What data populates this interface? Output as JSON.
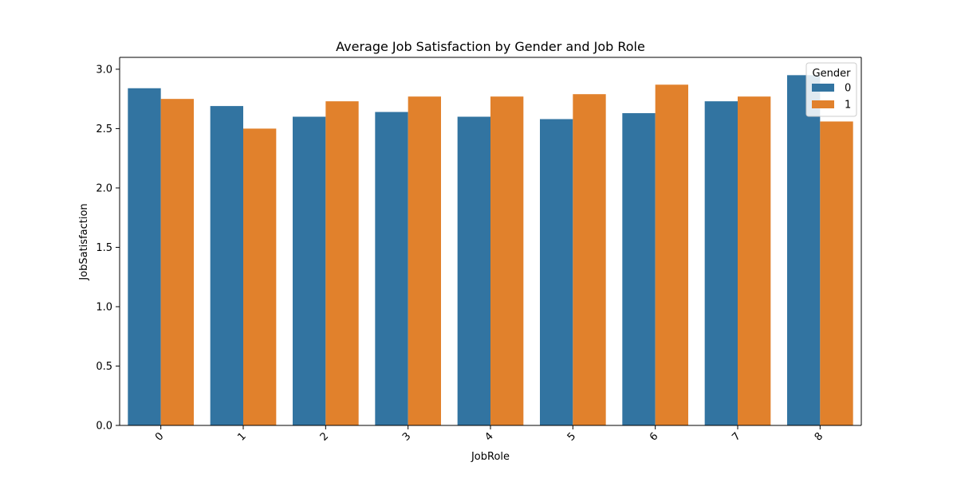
{
  "chart_data": {
    "type": "bar",
    "title": "Average Job Satisfaction by Gender and Job Role",
    "xlabel": "JobRole",
    "ylabel": "JobSatisfaction",
    "categories": [
      "0",
      "1",
      "2",
      "3",
      "4",
      "5",
      "6",
      "7",
      "8"
    ],
    "series": [
      {
        "name": "0",
        "color": "#3274a1",
        "values": [
          2.84,
          2.69,
          2.6,
          2.64,
          2.6,
          2.58,
          2.63,
          2.73,
          2.95
        ]
      },
      {
        "name": "1",
        "color": "#e1812c",
        "values": [
          2.75,
          2.5,
          2.73,
          2.77,
          2.77,
          2.79,
          2.87,
          2.77,
          2.56
        ]
      }
    ],
    "ylim": [
      0,
      3.1
    ],
    "yticks": [
      "0.0",
      "0.5",
      "1.0",
      "1.5",
      "2.0",
      "2.5",
      "3.0"
    ],
    "ytick_values": [
      0,
      0.5,
      1.0,
      1.5,
      2.0,
      2.5,
      3.0
    ],
    "x_tick_rotation": 45,
    "grid": false,
    "legend": {
      "title": "Gender",
      "placement": "top-right"
    }
  }
}
